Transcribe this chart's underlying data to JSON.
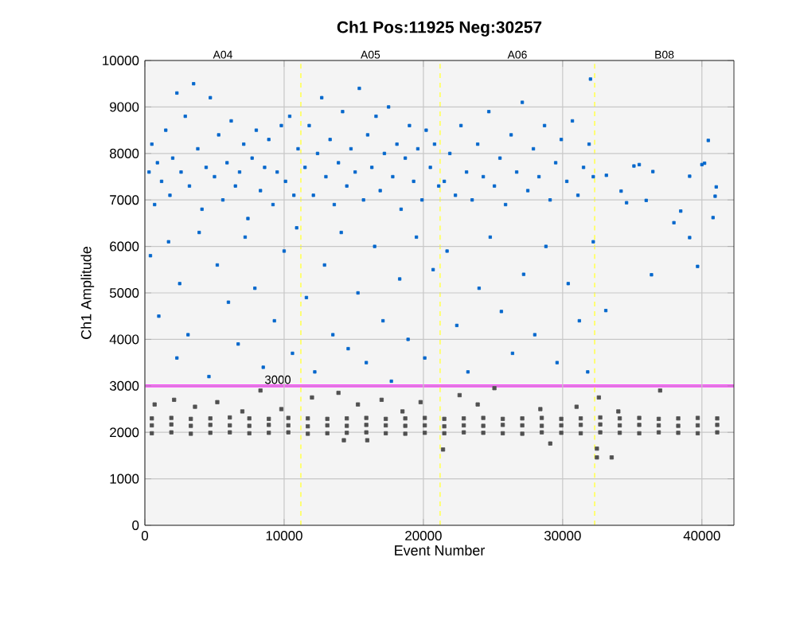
{
  "chart_data": {
    "type": "scatter",
    "title": "Ch1 Pos:11925 Neg:30257",
    "xlabel": "Event Number",
    "ylabel": "Ch1 Amplitude",
    "xlim": [
      0,
      42300
    ],
    "ylim": [
      0,
      10000
    ],
    "xticks": [
      0,
      10000,
      20000,
      30000,
      40000
    ],
    "yticks": [
      0,
      1000,
      2000,
      3000,
      4000,
      5000,
      6000,
      7000,
      8000,
      9000,
      10000
    ],
    "bands": [
      {
        "axis": "x",
        "from": 0,
        "to": 11200,
        "label": "A04",
        "color": "#f4f4f4"
      },
      {
        "axis": "x",
        "from": 11200,
        "to": 21200,
        "label": "A05",
        "color": "#f4f4f4"
      },
      {
        "axis": "x",
        "from": 21200,
        "to": 32300,
        "label": "A06",
        "color": "#f4f4f4"
      },
      {
        "axis": "x",
        "from": 32300,
        "to": 42300,
        "label": "B08",
        "color": "#f4f4f4"
      }
    ],
    "grid": true,
    "marker": "square",
    "ref_lines": [
      {
        "axis": "y",
        "value": 3000,
        "label": "3000",
        "color": "#ff00ff",
        "line_style": "solid"
      },
      {
        "axis": "x",
        "value": 11200,
        "color": "#ffff66",
        "line_style": "dashed"
      },
      {
        "axis": "x",
        "value": 21200,
        "color": "#ffff66",
        "line_style": "dashed"
      },
      {
        "axis": "x",
        "value": 32300,
        "color": "#ffff66",
        "line_style": "dashed"
      }
    ],
    "series": [
      {
        "color": "#0066cc",
        "x": [
          300,
          500,
          700,
          900,
          1200,
          1500,
          1800,
          2000,
          2300,
          2600,
          2900,
          3200,
          3500,
          3800,
          4100,
          4400,
          4700,
          5000,
          5300,
          5600,
          5900,
          6200,
          6500,
          6800,
          7100,
          7400,
          7700,
          8000,
          8300,
          8600,
          8900,
          9200,
          9500,
          9800,
          10100,
          10400,
          10700,
          11000,
          400,
          1000,
          1700,
          2300,
          2500,
          3100,
          3900,
          4600,
          5200,
          6000,
          6700,
          7200,
          7900,
          8500,
          9300,
          10000,
          10600,
          10900,
          11500,
          11800,
          12100,
          12400,
          12700,
          13000,
          13300,
          13600,
          13900,
          14200,
          14500,
          14800,
          15100,
          15400,
          15700,
          16000,
          16300,
          16600,
          16900,
          17200,
          17500,
          17800,
          18100,
          18400,
          18700,
          19000,
          19300,
          19600,
          19900,
          20200,
          20500,
          20800,
          21100,
          11600,
          12200,
          12900,
          13500,
          14100,
          14600,
          15300,
          15900,
          16500,
          17100,
          17700,
          18300,
          18900,
          19500,
          20100,
          20700,
          21500,
          21900,
          22300,
          22700,
          23100,
          23500,
          23900,
          24300,
          24700,
          25100,
          25500,
          25900,
          26300,
          26700,
          27100,
          27500,
          27900,
          28300,
          28700,
          29100,
          29500,
          29900,
          30300,
          30700,
          31100,
          31500,
          31900,
          32200,
          32000,
          21700,
          22400,
          23200,
          24000,
          24800,
          25600,
          26400,
          27200,
          28000,
          28800,
          29600,
          30400,
          31200,
          31800,
          32200,
          33140,
          35120,
          35500,
          36480,
          34200,
          34590,
          36000,
          39120,
          40000,
          40190,
          40460,
          41030,
          40950,
          40800,
          38480,
          37990,
          39120,
          39690,
          36380,
          33100
        ],
        "values": [
          7600,
          8200,
          6900,
          7800,
          7400,
          8500,
          7100,
          7900,
          9300,
          7600,
          8800,
          7300,
          9500,
          8100,
          6800,
          7700,
          9200,
          7500,
          8400,
          7000,
          7800,
          8700,
          7300,
          7600,
          8200,
          6600,
          7900,
          8500,
          7200,
          7700,
          8300,
          6900,
          7600,
          8600,
          7400,
          8800,
          7100,
          8100,
          5800,
          4500,
          6100,
          3600,
          5200,
          4100,
          6300,
          3200,
          5600,
          4800,
          3900,
          6200,
          5100,
          3400,
          4400,
          5900,
          3700,
          6400,
          7700,
          8600,
          7100,
          8000,
          9200,
          7500,
          8300,
          6900,
          7800,
          8900,
          7300,
          8100,
          7600,
          9400,
          7000,
          8400,
          7700,
          8800,
          7200,
          8000,
          9000,
          7500,
          8200,
          6800,
          7900,
          8600,
          7400,
          8100,
          7000,
          8500,
          7700,
          8200,
          7300,
          4900,
          3300,
          5600,
          4100,
          6300,
          3800,
          5000,
          3500,
          6000,
          4400,
          3100,
          5300,
          4000,
          6200,
          3600,
          5500,
          7400,
          8000,
          7100,
          8600,
          7600,
          7000,
          8200,
          7500,
          8900,
          7300,
          7900,
          6900,
          8400,
          7600,
          9100,
          7200,
          8100,
          7500,
          8600,
          7000,
          7800,
          8300,
          7400,
          8700,
          7100,
          7700,
          8200,
          7500,
          9600,
          5900,
          4300,
          3300,
          5100,
          6200,
          4600,
          3700,
          5400,
          4100,
          6000,
          3500,
          5200,
          4400,
          3300,
          6100,
          7530,
          7730,
          7760,
          7610,
          7190,
          6940,
          6990,
          7510,
          7760,
          7790,
          8280,
          7280,
          7080,
          6620,
          6760,
          6510,
          6190,
          5570,
          5390,
          4620
        ]
      },
      {
        "color": "#505050",
        "x": [
          500,
          500,
          500,
          1900,
          1900,
          1900,
          3300,
          3300,
          3300,
          4700,
          4700,
          4700,
          6100,
          6100,
          6100,
          7500,
          7500,
          7500,
          8900,
          8900,
          8900,
          10300,
          10300,
          10300,
          11700,
          11700,
          11700,
          13100,
          13100,
          13100,
          14500,
          14500,
          14500,
          15900,
          15900,
          15900,
          17300,
          17300,
          17300,
          18700,
          18700,
          18700,
          20100,
          20100,
          20100,
          21500,
          21500,
          21500,
          22900,
          22900,
          22900,
          24300,
          24300,
          24300,
          25700,
          25700,
          25700,
          27100,
          27100,
          27100,
          28500,
          28500,
          28500,
          29900,
          29900,
          29900,
          31300,
          31300,
          31300,
          32700,
          32700,
          32700,
          34100,
          34100,
          34100,
          35500,
          35500,
          35500,
          36900,
          36900,
          36900,
          38300,
          38300,
          38300,
          39700,
          39700,
          39700,
          41100,
          41100,
          41100,
          700,
          2100,
          3600,
          5200,
          7000,
          8300,
          9800,
          12000,
          13900,
          15300,
          17000,
          18500,
          19800,
          22600,
          23900,
          25100,
          28400,
          31000,
          32600,
          34000,
          37000,
          14290,
          15970,
          21410,
          29110,
          32460,
          33520,
          32460
        ],
        "values": [
          1980,
          2150,
          2300,
          2000,
          2170,
          2310,
          1970,
          2140,
          2290,
          1990,
          2160,
          2300,
          2000,
          2150,
          2320,
          1980,
          2140,
          2300,
          1990,
          2160,
          2290,
          2000,
          2150,
          2310,
          1970,
          2130,
          2300,
          1980,
          2150,
          2290,
          1990,
          2140,
          2300,
          2000,
          2160,
          2310,
          1980,
          2150,
          2290,
          1970,
          2140,
          2300,
          1990,
          2150,
          2310,
          1980,
          2130,
          2290,
          2000,
          2150,
          2300,
          1990,
          2140,
          2310,
          1980,
          2160,
          2290,
          1970,
          2150,
          2300,
          2000,
          2140,
          2310,
          1990,
          2150,
          2290,
          1980,
          2160,
          2300,
          2000,
          2170,
          2320,
          1990,
          2150,
          2300,
          1980,
          2160,
          2310,
          2000,
          2150,
          2290,
          1990,
          2140,
          2300,
          1980,
          2150,
          2310,
          2000,
          2160,
          2300,
          2600,
          2700,
          2550,
          2650,
          2450,
          2900,
          2500,
          2750,
          2850,
          2600,
          2700,
          2450,
          2650,
          2800,
          2600,
          2950,
          2500,
          2550,
          2750,
          2450,
          2900,
          1830,
          1830,
          1630,
          1760,
          1460,
          1460,
          1650
        ]
      }
    ]
  }
}
